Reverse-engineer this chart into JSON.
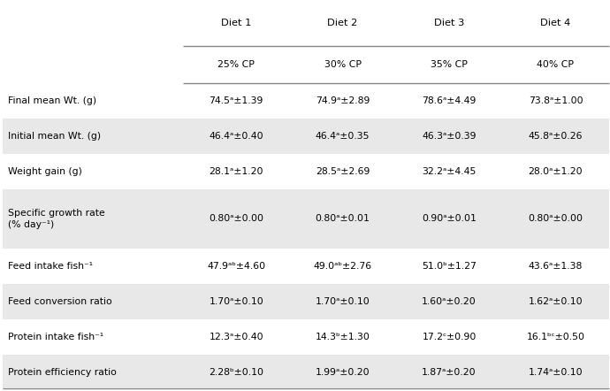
{
  "col_headers_row1": [
    "Diet 1",
    "Diet 2",
    "Diet 3",
    "Diet 4"
  ],
  "col_headers_row2": [
    "25% CP",
    "30% CP",
    "35% CP",
    "40% CP"
  ],
  "row_labels": [
    "Final mean Wt. (g)",
    "Initial mean Wt. (g)",
    "Weight gain (g)",
    "Specific growth rate\n(% day⁻¹)",
    "Feed intake fish⁻¹",
    "Feed conversion ratio",
    "Protein intake fish⁻¹",
    "Protein efficiency ratio"
  ],
  "cell_data": [
    [
      "74.5ᵃ±1.39",
      "74.9ᵃ±2.89",
      "78.6ᵃ±4.49",
      "73.8ᵃ±1.00"
    ],
    [
      "46.4ᵃ±0.40",
      "46.4ᵃ±0.35",
      "46.3ᵃ±0.39",
      "45.8ᵃ±0.26"
    ],
    [
      "28.1ᵃ±1.20",
      "28.5ᵃ±2.69",
      "32.2ᵃ±4.45",
      "28.0ᵃ±1.20"
    ],
    [
      "0.80ᵃ±0.00",
      "0.80ᵃ±0.01",
      "0.90ᵃ±0.01",
      "0.80ᵃ±0.00"
    ],
    [
      "47.9ᵃᵇ±4.60",
      "49.0ᵃᵇ±2.76",
      "51.0ᵇ±1.27",
      "43.6ᵃ±1.38"
    ],
    [
      "1.70ᵃ±0.10",
      "1.70ᵃ±0.10",
      "1.60ᵃ±0.20",
      "1.62ᵃ±0.10"
    ],
    [
      "12.3ᵃ±0.40",
      "14.3ᵇ±1.30",
      "17.2ᶜ±0.90",
      "16.1ᵇᶜ±0.50"
    ],
    [
      "2.28ᵇ±0.10",
      "1.99ᵃ±0.20",
      "1.87ᵃ±0.20",
      "1.74ᵃ±0.10"
    ]
  ],
  "shaded_rows": [
    1,
    3,
    5,
    7
  ],
  "bg_color": "#ffffff",
  "shade_color": "#e8e8e8",
  "line_color": "#888888",
  "text_color": "#000000",
  "font_size": 7.8,
  "header_font_size": 8.2,
  "fig_width": 6.9,
  "fig_height": 4.42,
  "dpi": 100
}
